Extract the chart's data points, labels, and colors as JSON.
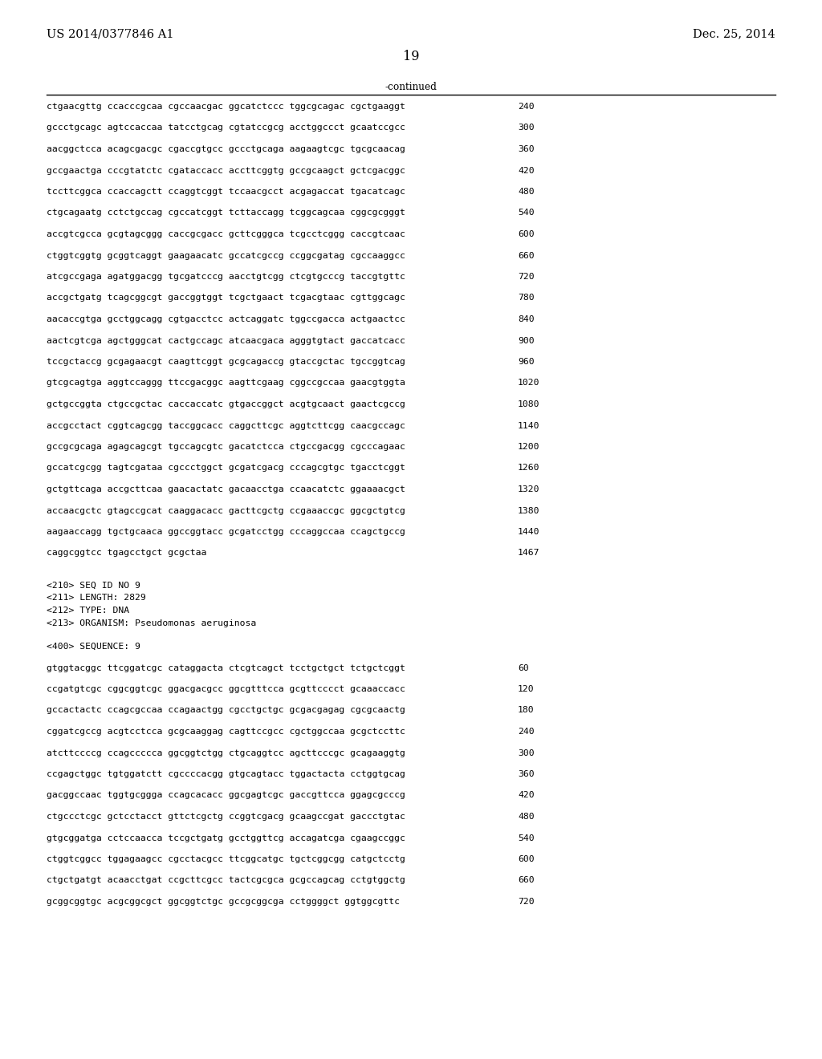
{
  "header_left": "US 2014/0377846 A1",
  "header_right": "Dec. 25, 2014",
  "page_number": "19",
  "continued_label": "-continued",
  "background_color": "#ffffff",
  "text_color": "#000000",
  "font_size_header": 10.5,
  "font_size_body": 8.5,
  "font_size_page": 11,
  "sequence_lines_part1": [
    [
      "ctgaacgttg ccacccgcaa cgccaacgac ggcatctccc tggcgcagac cgctgaaggt",
      "240"
    ],
    [
      "gccctgcagc agtccaccaa tatcctgcag cgtatccgcg acctggccct gcaatccgcc",
      "300"
    ],
    [
      "aacggctcca acagcgacgc cgaccgtgcc gccctgcaga aagaagtcgc tgcgcaacag",
      "360"
    ],
    [
      "gccgaactga cccgtatctc cgataccacc accttcggtg gccgcaagct gctcgacggc",
      "420"
    ],
    [
      "tccttcggca ccaccagctt ccaggtcggt tccaacgcct acgagaccat tgacatcagc",
      "480"
    ],
    [
      "ctgcagaatg cctctgccag cgccatcggt tcttaccagg tcggcagcaa cggcgcgggt",
      "540"
    ],
    [
      "accgtcgcca gcgtagcggg caccgcgacc gcttcgggca tcgcctcggg caccgtcaac",
      "600"
    ],
    [
      "ctggtcggtg gcggtcaggt gaagaacatc gccatcgccg ccggcgatag cgccaaggcc",
      "660"
    ],
    [
      "atcgccgaga agatggacgg tgcgatcccg aacctgtcgg ctcgtgcccg taccgtgttc",
      "720"
    ],
    [
      "accgctgatg tcagcggcgt gaccggtggt tcgctgaact tcgacgtaac cgttggcagc",
      "780"
    ],
    [
      "aacaccgtga gcctggcagg cgtgacctcc actcaggatc tggccgacca actgaactcc",
      "840"
    ],
    [
      "aactcgtcga agctgggcat cactgccagc atcaacgaca agggtgtact gaccatcacc",
      "900"
    ],
    [
      "tccgctaccg gcgagaacgt caagttcggt gcgcagaccg gtaccgctac tgccggtcag",
      "960"
    ],
    [
      "gtcgcagtga aggtccaggg ttccgacggc aagttcgaag cggccgccaa gaacgtggta",
      "1020"
    ],
    [
      "gctgccggta ctgccgctac caccaccatc gtgaccggct acgtgcaact gaactcgccg",
      "1080"
    ],
    [
      "accgcctact cggtcagcgg taccggcacc caggcttcgc aggtcttcgg caacgccagc",
      "1140"
    ],
    [
      "gccgcgcaga agagcagcgt tgccagcgtc gacatctcca ctgccgacgg cgcccagaac",
      "1200"
    ],
    [
      "gccatcgcgg tagtcgataa cgccctggct gcgatcgacg cccagcgtgc tgacctcggt",
      "1260"
    ],
    [
      "gctgttcaga accgcttcaa gaacactatc gacaacctga ccaacatctc ggaaaacgct",
      "1320"
    ],
    [
      "accaacgctc gtagccgcat caaggacacc gacttcgctg ccgaaaccgc ggcgctgtcg",
      "1380"
    ],
    [
      "aagaaccagg tgctgcaaca ggccggtacc gcgatcctgg cccaggccaa ccagctgccg",
      "1440"
    ],
    [
      "caggcggtcc tgagcctgct gcgctaa",
      "1467"
    ]
  ],
  "metadata_lines": [
    "<210> SEQ ID NO 9",
    "<211> LENGTH: 2829",
    "<212> TYPE: DNA",
    "<213> ORGANISM: Pseudomonas aeruginosa"
  ],
  "sequence_label": "<400> SEQUENCE: 9",
  "sequence_lines_part2": [
    [
      "gtggtacggc ttcggatcgc cataggacta ctcgtcagct tcctgctgct tctgctcggt",
      "60"
    ],
    [
      "ccgatgtcgc cggcggtcgc ggacgacgcc ggcgtttcca gcgttcccct gcaaaccacc",
      "120"
    ],
    [
      "gccactactc ccagcgccaa ccagaactgg cgcctgctgc gcgacgagag cgcgcaactg",
      "180"
    ],
    [
      "cggatcgccg acgtcctcca gcgcaaggag cagttccgcc cgctggccaa gcgctccttc",
      "240"
    ],
    [
      "atcttccccg ccagccccca ggcggtctgg ctgcaggtcc agcttcccgc gcagaaggtg",
      "300"
    ],
    [
      "ccgagctggc tgtggatctt cgccccacgg gtgcagtacc tggactacta cctggtgcag",
      "360"
    ],
    [
      "gacggccaac tggtgcggga ccagcacacc ggcgagtcgc gaccgttcca ggagcgcccg",
      "420"
    ],
    [
      "ctgccctcgc gctcctacct gttctcgctg ccggtcgacg gcaagccgat gaccctgtac",
      "480"
    ],
    [
      "gtgcggatga cctccaacca tccgctgatg gcctggttcg accagatcga cgaagccggc",
      "540"
    ],
    [
      "ctggtcggcc tggagaagcc cgcctacgcc ttcggcatgc tgctcggcgg catgctcctg",
      "600"
    ],
    [
      "ctgctgatgt acaacctgat ccgcttcgcc tactcgcgca gcgccagcag cctgtggctg",
      "660"
    ],
    [
      "gcggcggtgc acgcggcgct ggcggtctgc gccgcggcga cctggggct ggtggcgttc",
      "720"
    ]
  ]
}
